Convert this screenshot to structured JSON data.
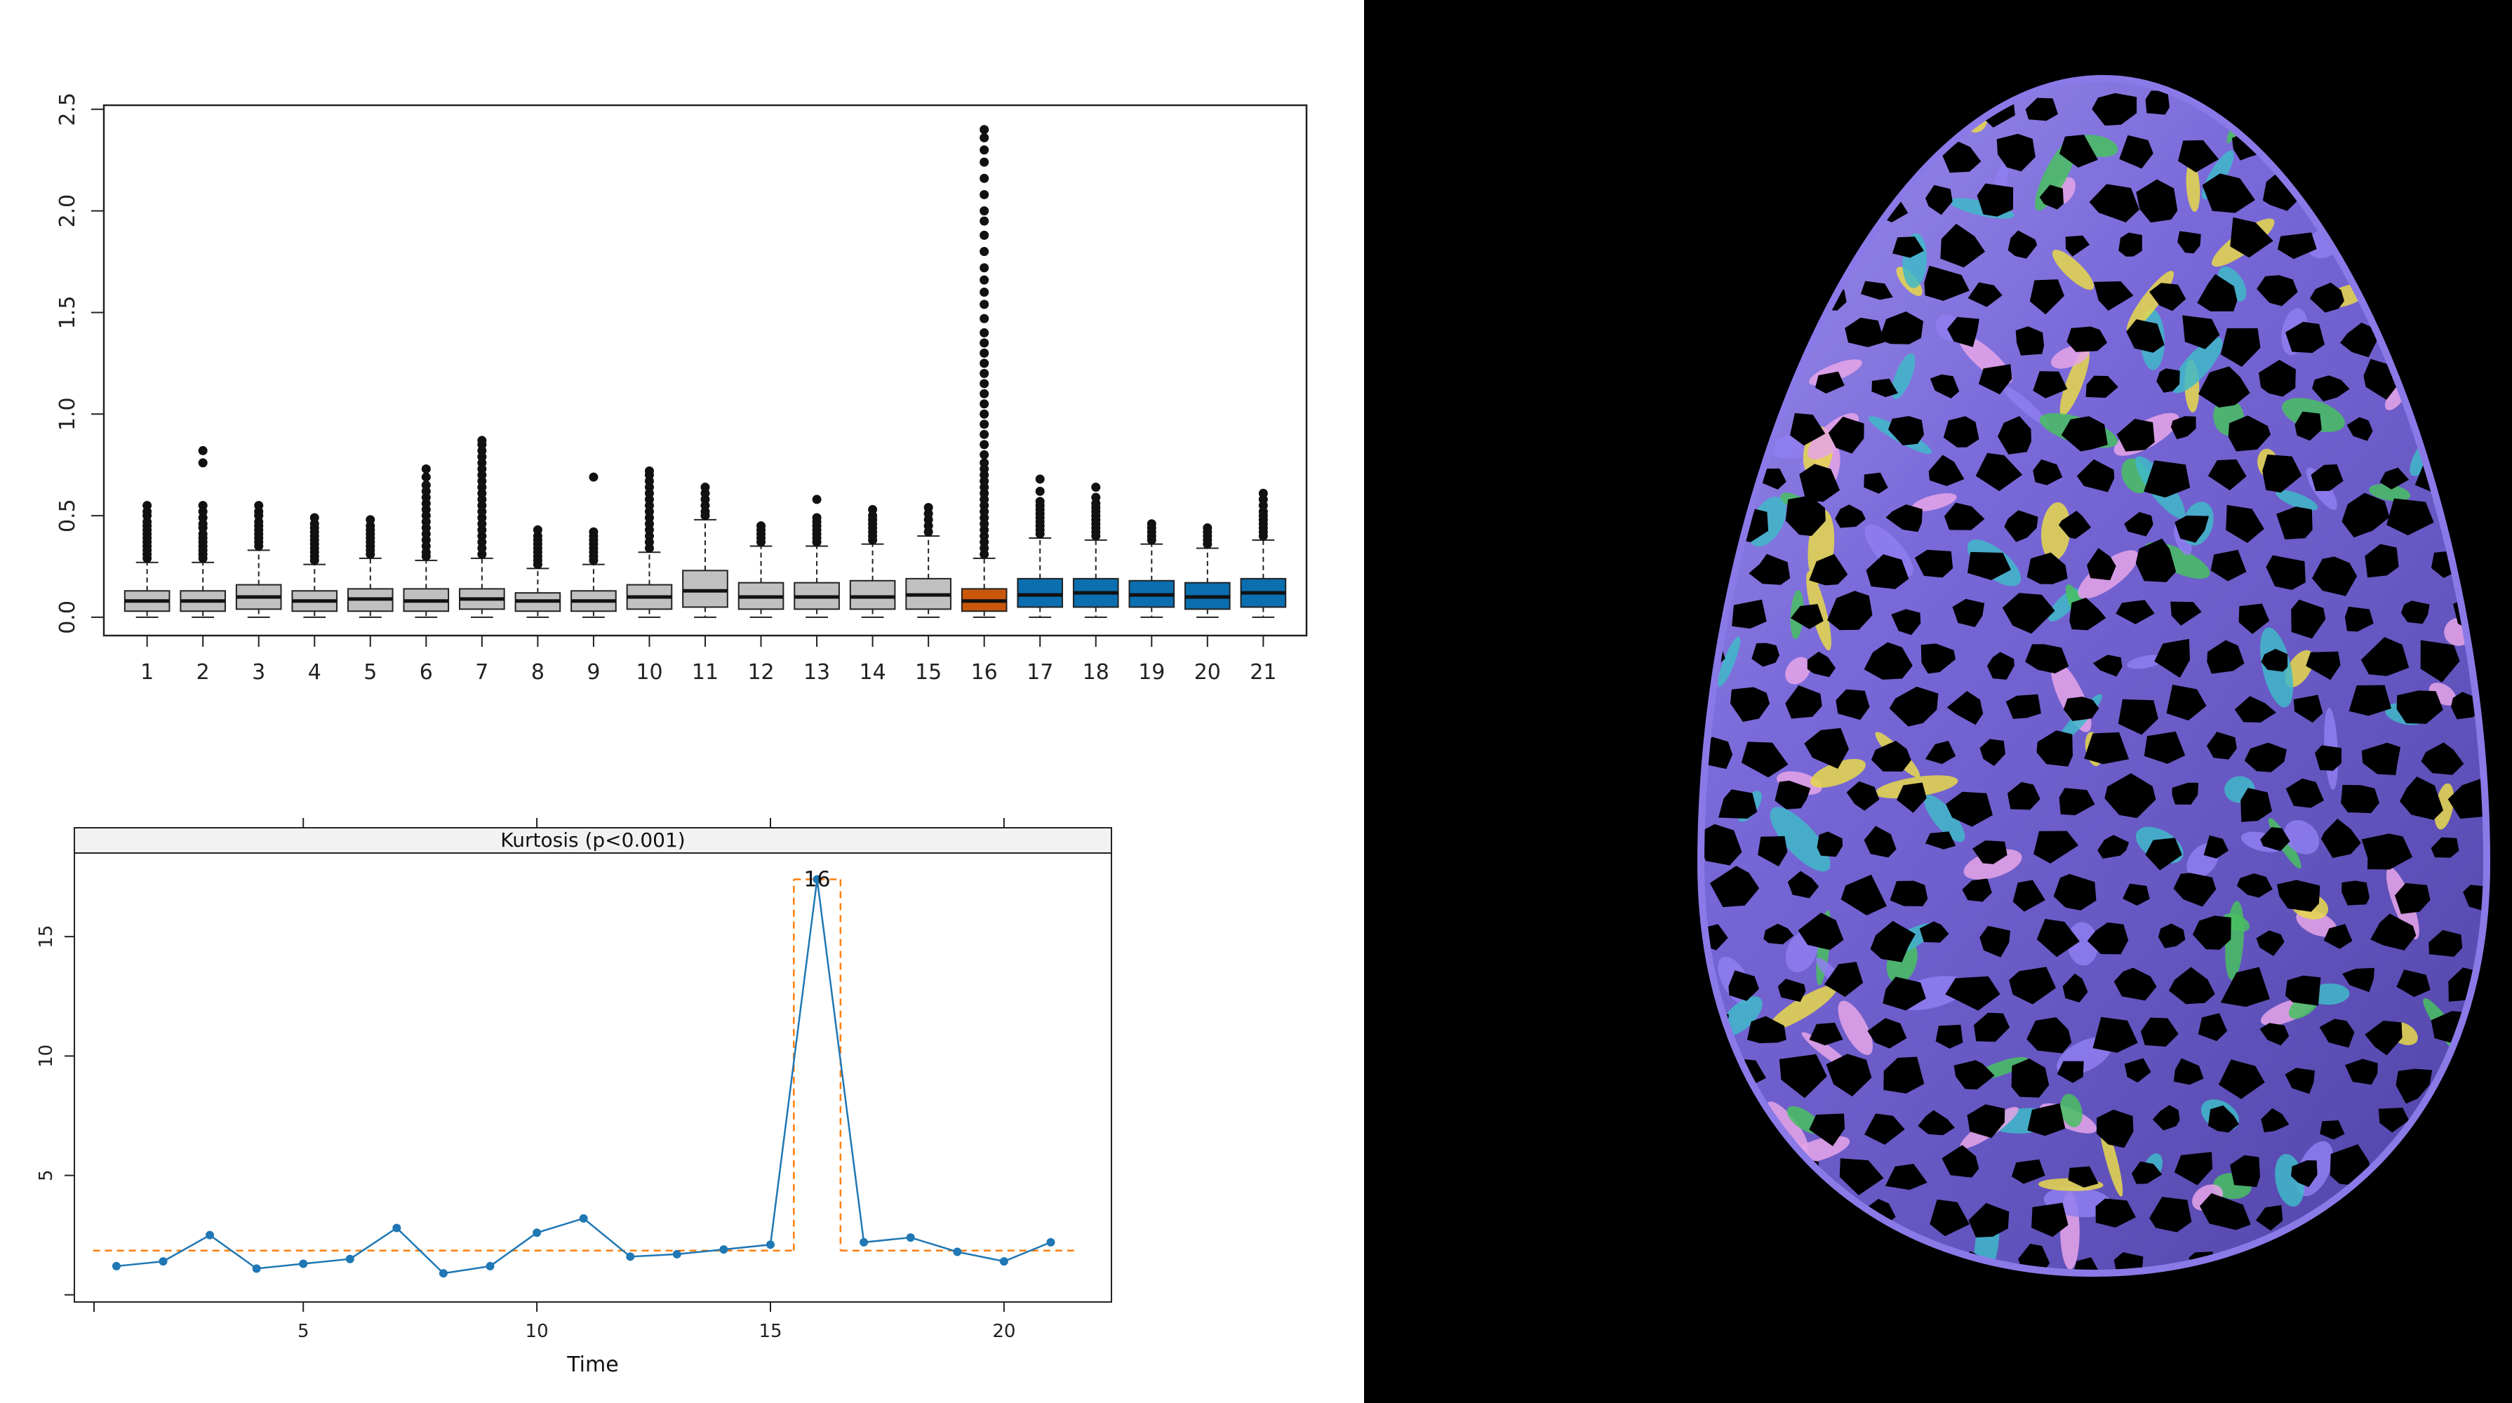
{
  "chart_data": [
    {
      "type": "box",
      "categories": [
        "1",
        "2",
        "3",
        "4",
        "5",
        "6",
        "7",
        "8",
        "9",
        "10",
        "11",
        "12",
        "13",
        "14",
        "15",
        "16",
        "17",
        "18",
        "19",
        "20",
        "21"
      ],
      "ylim": [
        -0.09,
        2.52
      ],
      "yticks": [
        "0.0",
        "0.5",
        "1.0",
        "1.5",
        "2.0",
        "2.5"
      ],
      "ytick_values": [
        0,
        0.5,
        1.0,
        1.5,
        2.0,
        2.5
      ],
      "group_colors": {
        "gray": "#c0c0c0",
        "highlight": "#c9580d",
        "blue": "#0b6eaf"
      },
      "boxes": [
        {
          "q1": 0.03,
          "median": 0.08,
          "q3": 0.13,
          "wmin": 0.0,
          "wmax": 0.27,
          "group": "gray",
          "outliers": [
            0.29,
            0.31,
            0.33,
            0.35,
            0.37,
            0.39,
            0.41,
            0.43,
            0.45,
            0.47,
            0.5,
            0.52,
            0.55
          ]
        },
        {
          "q1": 0.03,
          "median": 0.08,
          "q3": 0.13,
          "wmin": 0.0,
          "wmax": 0.27,
          "group": "gray",
          "outliers": [
            0.29,
            0.31,
            0.33,
            0.35,
            0.37,
            0.39,
            0.41,
            0.44,
            0.46,
            0.49,
            0.52,
            0.55,
            0.76,
            0.82
          ]
        },
        {
          "q1": 0.04,
          "median": 0.1,
          "q3": 0.16,
          "wmin": 0.0,
          "wmax": 0.33,
          "group": "gray",
          "outliers": [
            0.35,
            0.37,
            0.39,
            0.41,
            0.43,
            0.45,
            0.47,
            0.5,
            0.52,
            0.55
          ]
        },
        {
          "q1": 0.03,
          "median": 0.08,
          "q3": 0.13,
          "wmin": 0.0,
          "wmax": 0.26,
          "group": "gray",
          "outliers": [
            0.28,
            0.3,
            0.32,
            0.34,
            0.36,
            0.38,
            0.4,
            0.42,
            0.44,
            0.46,
            0.49
          ]
        },
        {
          "q1": 0.03,
          "median": 0.09,
          "q3": 0.14,
          "wmin": 0.0,
          "wmax": 0.29,
          "group": "gray",
          "outliers": [
            0.31,
            0.33,
            0.35,
            0.37,
            0.39,
            0.41,
            0.43,
            0.45,
            0.48
          ]
        },
        {
          "q1": 0.03,
          "median": 0.08,
          "q3": 0.14,
          "wmin": 0.0,
          "wmax": 0.28,
          "group": "gray",
          "outliers": [
            0.3,
            0.32,
            0.35,
            0.38,
            0.41,
            0.44,
            0.47,
            0.5,
            0.53,
            0.56,
            0.59,
            0.62,
            0.65,
            0.69,
            0.73
          ]
        },
        {
          "q1": 0.04,
          "median": 0.09,
          "q3": 0.14,
          "wmin": 0.0,
          "wmax": 0.29,
          "group": "gray",
          "outliers": [
            0.31,
            0.34,
            0.37,
            0.4,
            0.43,
            0.46,
            0.49,
            0.52,
            0.55,
            0.58,
            0.61,
            0.64,
            0.67,
            0.7,
            0.73,
            0.76,
            0.79,
            0.82,
            0.85,
            0.87
          ]
        },
        {
          "q1": 0.03,
          "median": 0.08,
          "q3": 0.12,
          "wmin": 0.0,
          "wmax": 0.24,
          "group": "gray",
          "outliers": [
            0.26,
            0.28,
            0.3,
            0.32,
            0.34,
            0.36,
            0.38,
            0.4,
            0.43
          ]
        },
        {
          "q1": 0.03,
          "median": 0.08,
          "q3": 0.13,
          "wmin": 0.0,
          "wmax": 0.26,
          "group": "gray",
          "outliers": [
            0.28,
            0.3,
            0.32,
            0.34,
            0.36,
            0.38,
            0.4,
            0.42,
            0.69
          ]
        },
        {
          "q1": 0.04,
          "median": 0.1,
          "q3": 0.16,
          "wmin": 0.0,
          "wmax": 0.32,
          "group": "gray",
          "outliers": [
            0.34,
            0.37,
            0.4,
            0.43,
            0.46,
            0.49,
            0.52,
            0.55,
            0.58,
            0.61,
            0.64,
            0.67,
            0.7,
            0.72
          ]
        },
        {
          "q1": 0.05,
          "median": 0.13,
          "q3": 0.23,
          "wmin": 0.0,
          "wmax": 0.48,
          "group": "gray",
          "outliers": [
            0.5,
            0.52,
            0.55,
            0.58,
            0.61,
            0.64
          ]
        },
        {
          "q1": 0.04,
          "median": 0.1,
          "q3": 0.17,
          "wmin": 0.0,
          "wmax": 0.35,
          "group": "gray",
          "outliers": [
            0.37,
            0.39,
            0.41,
            0.43,
            0.45
          ]
        },
        {
          "q1": 0.04,
          "median": 0.1,
          "q3": 0.17,
          "wmin": 0.0,
          "wmax": 0.35,
          "group": "gray",
          "outliers": [
            0.37,
            0.39,
            0.41,
            0.43,
            0.45,
            0.47,
            0.49,
            0.58
          ]
        },
        {
          "q1": 0.04,
          "median": 0.1,
          "q3": 0.18,
          "wmin": 0.0,
          "wmax": 0.36,
          "group": "gray",
          "outliers": [
            0.38,
            0.4,
            0.42,
            0.44,
            0.46,
            0.48,
            0.5,
            0.53
          ]
        },
        {
          "q1": 0.04,
          "median": 0.11,
          "q3": 0.19,
          "wmin": 0.0,
          "wmax": 0.4,
          "group": "gray",
          "outliers": [
            0.42,
            0.45,
            0.48,
            0.51,
            0.54
          ]
        },
        {
          "q1": 0.03,
          "median": 0.08,
          "q3": 0.14,
          "wmin": 0.0,
          "wmax": 0.29,
          "group": "highlight",
          "outliers": [
            0.31,
            0.34,
            0.37,
            0.4,
            0.43,
            0.46,
            0.49,
            0.52,
            0.55,
            0.58,
            0.61,
            0.64,
            0.67,
            0.7,
            0.73,
            0.76,
            0.8,
            0.85,
            0.9,
            0.95,
            1.0,
            1.05,
            1.1,
            1.15,
            1.2,
            1.25,
            1.3,
            1.35,
            1.4,
            1.47,
            1.54,
            1.6,
            1.66,
            1.72,
            1.8,
            1.88,
            1.95,
            2.0,
            2.08,
            2.16,
            2.24,
            2.3,
            2.36,
            2.4
          ]
        },
        {
          "q1": 0.05,
          "median": 0.11,
          "q3": 0.19,
          "wmin": 0.0,
          "wmax": 0.39,
          "group": "blue",
          "outliers": [
            0.41,
            0.43,
            0.45,
            0.47,
            0.49,
            0.51,
            0.53,
            0.55,
            0.57,
            0.62,
            0.68
          ]
        },
        {
          "q1": 0.05,
          "median": 0.12,
          "q3": 0.19,
          "wmin": 0.0,
          "wmax": 0.38,
          "group": "blue",
          "outliers": [
            0.4,
            0.42,
            0.44,
            0.46,
            0.48,
            0.5,
            0.52,
            0.54,
            0.56,
            0.59,
            0.64
          ]
        },
        {
          "q1": 0.05,
          "median": 0.11,
          "q3": 0.18,
          "wmin": 0.0,
          "wmax": 0.36,
          "group": "blue",
          "outliers": [
            0.38,
            0.4,
            0.42,
            0.44,
            0.46
          ]
        },
        {
          "q1": 0.04,
          "median": 0.1,
          "q3": 0.17,
          "wmin": 0.0,
          "wmax": 0.34,
          "group": "blue",
          "outliers": [
            0.36,
            0.38,
            0.4,
            0.42,
            0.44
          ]
        },
        {
          "q1": 0.05,
          "median": 0.12,
          "q3": 0.19,
          "wmin": 0.0,
          "wmax": 0.38,
          "group": "blue",
          "outliers": [
            0.4,
            0.42,
            0.44,
            0.46,
            0.48,
            0.5,
            0.52,
            0.55,
            0.58,
            0.61
          ]
        }
      ]
    },
    {
      "type": "line",
      "title": "Kurtosis (p<0.001)",
      "xlabel": "Time",
      "xlim": [
        0.1,
        22.3
      ],
      "ylim": [
        -0.3,
        18.5
      ],
      "xticks": [
        5,
        10,
        15,
        20
      ],
      "yticks": [
        5,
        10,
        15
      ],
      "x": [
        1,
        2,
        3,
        4,
        5,
        6,
        7,
        8,
        9,
        10,
        11,
        12,
        13,
        14,
        15,
        16,
        17,
        18,
        19,
        20,
        21
      ],
      "values": [
        1.2,
        1.4,
        2.5,
        1.1,
        1.3,
        1.5,
        2.8,
        0.9,
        1.2,
        2.6,
        3.2,
        1.6,
        1.7,
        1.9,
        2.1,
        17.4,
        2.2,
        2.4,
        1.8,
        1.4,
        2.2
      ],
      "series_color": "#1f77b4",
      "threshold_color": "#ff7f0e",
      "threshold_segments": [
        {
          "x": [
            0.5,
            15.5
          ],
          "y": [
            1.85,
            1.85
          ]
        },
        {
          "x": [
            15.5,
            15.5
          ],
          "y": [
            1.85,
            17.4
          ]
        },
        {
          "x": [
            15.5,
            16.5
          ],
          "y": [
            17.4,
            17.4
          ]
        },
        {
          "x": [
            16.5,
            16.5
          ],
          "y": [
            17.4,
            1.85
          ]
        },
        {
          "x": [
            16.5,
            21.5
          ],
          "y": [
            1.85,
            1.85
          ]
        }
      ],
      "annotations": [
        {
          "x": 16,
          "y": 17.4,
          "text": "16"
        }
      ]
    }
  ],
  "egg": {
    "colors": {
      "shell": "#6b5fd0",
      "web_a": "#8f7ef0",
      "web_b": "#3fb8c8",
      "web_c": "#48c060",
      "web_d": "#e8d84a",
      "web_e": "#e6a4e8",
      "hole": "#000000"
    }
  }
}
